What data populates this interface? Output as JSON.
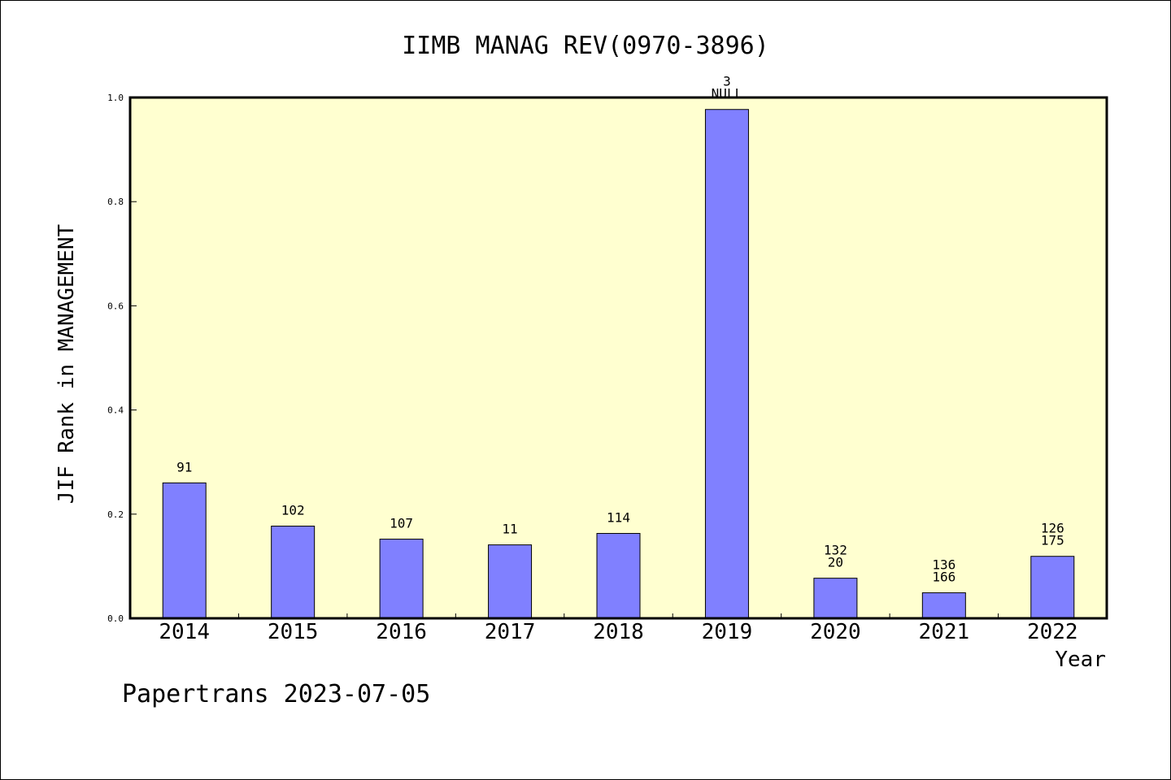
{
  "chart_data": {
    "type": "bar",
    "title": "IIMB MANAG REV(0970-3896)",
    "xlabel": "Year",
    "ylabel": "JIF Rank in MANAGEMENT",
    "categories": [
      "2014",
      "2015",
      "2016",
      "2017",
      "2018",
      "2019",
      "2020",
      "2021",
      "2022"
    ],
    "values": [
      0.26,
      0.177,
      0.152,
      0.141,
      0.163,
      0.977,
      0.077,
      0.049,
      0.119
    ],
    "bar_labels": [
      [
        "91"
      ],
      [
        "102"
      ],
      [
        "107"
      ],
      [
        "11"
      ],
      [
        "114"
      ],
      [
        "3",
        "NULL"
      ],
      [
        "132",
        "20"
      ],
      [
        "136",
        "166"
      ],
      [
        "126",
        "175"
      ]
    ],
    "ylim": [
      0,
      1.0
    ],
    "yticks": [
      "0.0",
      "0.2",
      "0.4",
      "0.6",
      "0.8",
      "1.0"
    ],
    "bar_color": "#8080ff",
    "plot_background": "#ffffd0",
    "grid": false,
    "legend": "none"
  },
  "footer": {
    "text": "Papertrans 2023-07-05"
  }
}
